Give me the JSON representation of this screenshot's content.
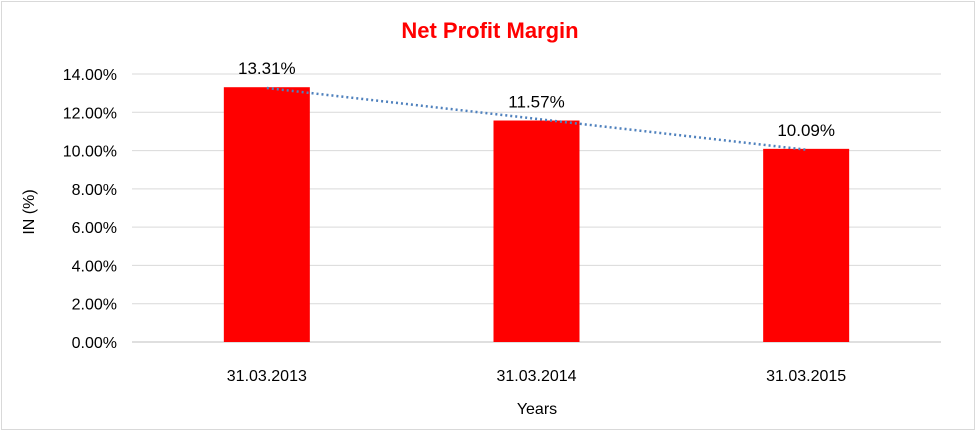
{
  "chart_data": {
    "type": "bar",
    "title": "Net Profit Margin",
    "xlabel": "Years",
    "ylabel": "IN (%)",
    "categories": [
      "31.03.2013",
      "31.03.2014",
      "31.03.2015"
    ],
    "values": [
      13.31,
      11.57,
      10.09
    ],
    "data_labels": [
      "13.31%",
      "11.57%",
      "10.09%"
    ],
    "ylim": [
      0,
      14
    ],
    "yticks": [
      0,
      2,
      4,
      6,
      8,
      10,
      12,
      14
    ],
    "ytick_labels": [
      "0.00%",
      "2.00%",
      "4.00%",
      "6.00%",
      "8.00%",
      "10.00%",
      "12.00%",
      "14.00%"
    ],
    "grid": true,
    "trendline": "linear, dotted",
    "colors": {
      "bar": "#ff0000",
      "title": "#ff0000",
      "trendline": "#4f81bd",
      "grid": "#d9d9d9"
    }
  }
}
